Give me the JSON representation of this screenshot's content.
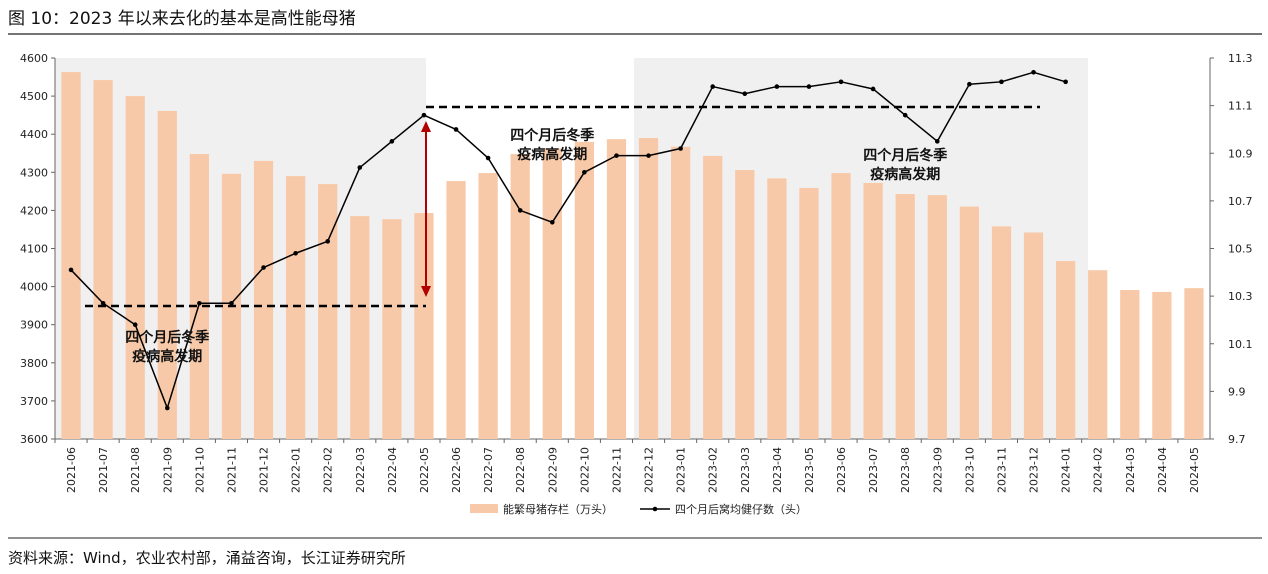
{
  "chart_data": {
    "type": "bar-line",
    "title": "图 10：2023 年以来去化的基本是高性能母猪",
    "source": "资料来源：Wind，农业农村部，涌益咨询，长江证券研究所",
    "categories": [
      "2021-06",
      "2021-07",
      "2021-08",
      "2021-09",
      "2021-10",
      "2021-11",
      "2021-12",
      "2022-01",
      "2022-02",
      "2022-03",
      "2022-04",
      "2022-05",
      "2022-06",
      "2022-07",
      "2022-08",
      "2022-09",
      "2022-10",
      "2022-11",
      "2022-12",
      "2023-01",
      "2023-02",
      "2023-03",
      "2023-04",
      "2023-05",
      "2023-06",
      "2023-07",
      "2023-08",
      "2023-09",
      "2023-10",
      "2023-11",
      "2023-12",
      "2024-01",
      "2024-02",
      "2024-03",
      "2024-04",
      "2024-05"
    ],
    "series": [
      {
        "name": "能繁母猪存栏（万头）",
        "type": "bar",
        "color": "#f8c9a8",
        "axis": "y",
        "values": [
          4563,
          4542,
          4500,
          4461,
          4348,
          4296,
          4330,
          4290,
          4269,
          4185,
          4177,
          4193,
          4277,
          4298,
          4348,
          4362,
          4380,
          4387,
          4390,
          4367,
          4343,
          4306,
          4284,
          4259,
          4298,
          4272,
          4243,
          4240,
          4210,
          4158,
          4142,
          4067,
          4043,
          3991,
          3986,
          3996
        ]
      },
      {
        "name": "四个月后窝均健仔数（头）",
        "type": "line",
        "color": "#000000",
        "axis": "y2",
        "values": [
          10.41,
          10.27,
          10.18,
          9.83,
          10.27,
          10.27,
          10.42,
          10.48,
          10.53,
          10.84,
          10.95,
          11.06,
          11.0,
          10.88,
          10.66,
          10.61,
          10.82,
          10.89,
          10.89,
          10.92,
          11.18,
          11.15,
          11.18,
          11.18,
          11.2,
          11.17,
          11.06,
          10.95,
          11.19,
          11.2,
          11.24,
          11.2,
          null,
          null,
          null,
          null
        ]
      }
    ],
    "ylim": [
      3600,
      4600
    ],
    "yticks": [
      3600,
      3700,
      3800,
      3900,
      4000,
      4100,
      4200,
      4300,
      4400,
      4500,
      4600
    ],
    "y2lim": [
      9.7,
      11.3
    ],
    "y2ticks": [
      9.7,
      9.9,
      10.1,
      10.3,
      10.5,
      10.7,
      10.9,
      11.1,
      11.3
    ],
    "annotations": [
      {
        "lines": [
          "四个月后冬季",
          "疫病高发期"
        ],
        "category": "2021-09"
      },
      {
        "lines": [
          "四个月后冬季",
          "疫病高发期"
        ],
        "category": "2022-09"
      },
      {
        "lines": [
          "四个月后冬季",
          "疫病高发期"
        ],
        "category": "2023-08"
      }
    ],
    "legend": "bottom"
  }
}
